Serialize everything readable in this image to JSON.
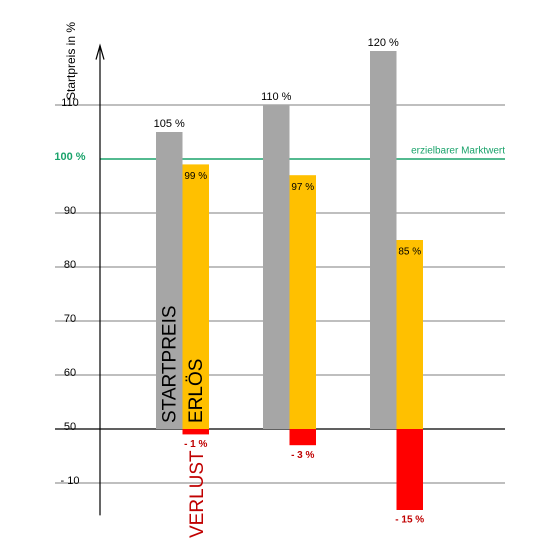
{
  "chart_data": {
    "type": "bar",
    "y_axis_label": "Startpreis in %",
    "ylim": [
      34,
      121
    ],
    "yticks": [
      110,
      {
        "value": 100,
        "label": "100 %"
      },
      90,
      80,
      70,
      60,
      50
    ],
    "y2lim": [
      -16,
      71
    ],
    "y2ticks": [
      {
        "value": -10,
        "label": "- 10"
      }
    ],
    "grid": true,
    "baseline": 50,
    "reference_line": {
      "value": 100,
      "label": "erzielbarer Marktwert",
      "color": "#1aa36b"
    },
    "series": [
      {
        "name": "STARTPREIS",
        "color": "#a6a6a6",
        "values": [
          105,
          110,
          120
        ],
        "value_labels": [
          "105 %",
          "110 %",
          "120 %"
        ]
      },
      {
        "name": "ERLÖS",
        "color": "#ffc000",
        "values": [
          99,
          97,
          85
        ],
        "value_labels": [
          "99 %",
          "97 %",
          "85 %"
        ]
      },
      {
        "name": "VERLUST",
        "color": "#ff0000",
        "axis": "y2",
        "values": [
          -1,
          -3,
          -15
        ],
        "value_labels": [
          "- 1 %",
          "- 3 %",
          "- 15 %"
        ]
      }
    ]
  }
}
